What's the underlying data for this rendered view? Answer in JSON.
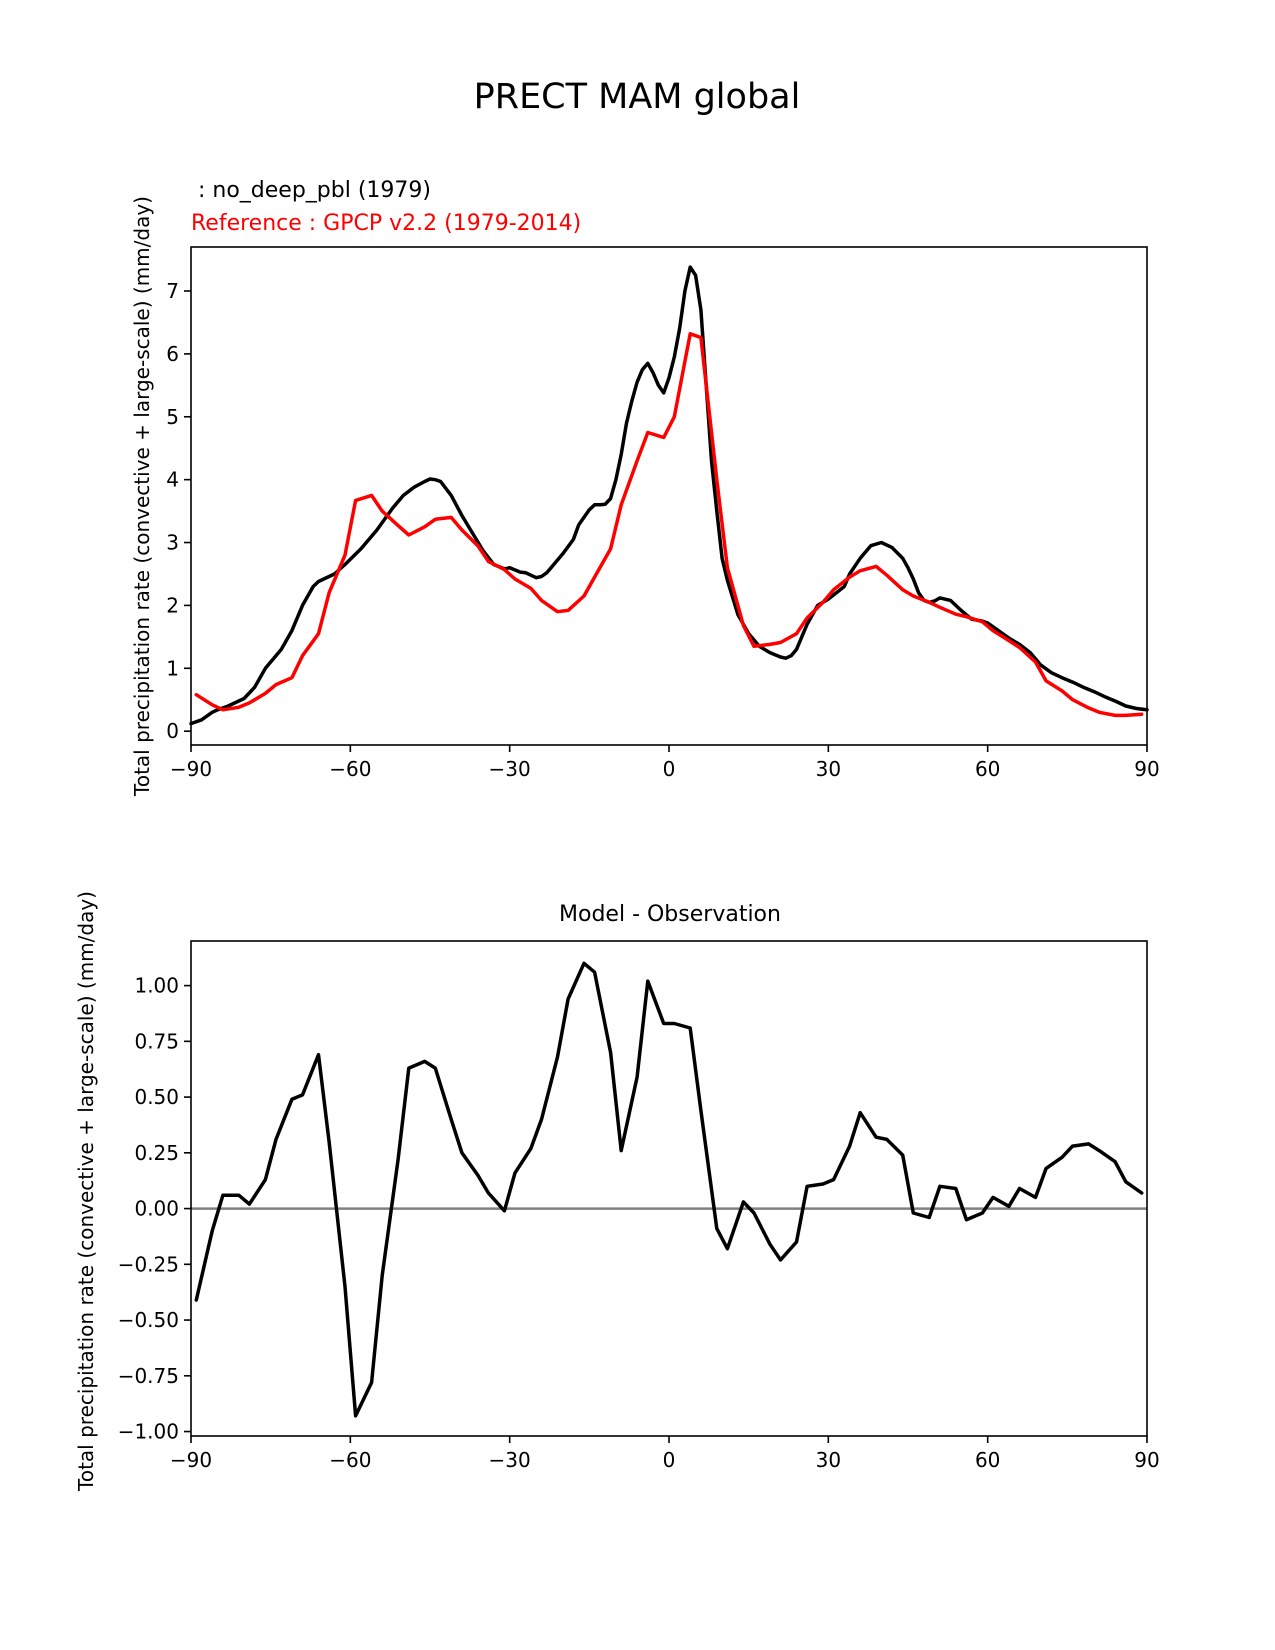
{
  "figure": {
    "title": "PRECT MAM global",
    "test_label": " : no_deep_pbl (1979)",
    "ref_label": "Reference : GPCP v2.2 (1979-2014)",
    "test_color": "#000000",
    "ref_color": "#ff0000",
    "zero_line_color": "#808080"
  },
  "chart_data": [
    {
      "type": "line",
      "title": "",
      "xlabel": "",
      "ylabel": "Total precipitation rate (convective + large-scale) (mm/day)",
      "xlim": [
        -90,
        90
      ],
      "ylim": [
        -0.22,
        7.7
      ],
      "xticks": [
        -90,
        -60,
        -30,
        0,
        30,
        60,
        90
      ],
      "xtick_labels": [
        "−90",
        "−60",
        "−30",
        "0",
        "30",
        "60",
        "90"
      ],
      "yticks": [
        0,
        1,
        2,
        3,
        4,
        5,
        6,
        7
      ],
      "ytick_labels": [
        "0",
        "1",
        "2",
        "3",
        "4",
        "5",
        "6",
        "7"
      ],
      "series": [
        {
          "name": "no_deep_pbl (1979)",
          "color": "#000000",
          "x": [
            -90,
            -88,
            -87,
            -86,
            -85,
            -83,
            -80,
            -78,
            -76,
            -73,
            -71,
            -69,
            -67,
            -66,
            -65,
            -63,
            -61,
            -58,
            -55,
            -52,
            -50,
            -48,
            -46,
            -45,
            -44,
            -43,
            -41,
            -39,
            -37,
            -35,
            -33,
            -31,
            -30,
            -28,
            -27,
            -25,
            -24,
            -23,
            -22,
            -20,
            -18,
            -17,
            -15,
            -14,
            -13,
            -12,
            -11,
            -10,
            -9,
            -8,
            -7,
            -6,
            -5,
            -4,
            -3,
            -2,
            -1,
            0,
            1,
            2,
            3,
            4,
            5,
            6,
            7,
            8,
            9,
            10,
            11,
            13,
            15,
            17,
            19,
            21,
            22,
            23,
            24,
            26,
            28,
            30,
            33,
            34,
            36,
            38,
            40,
            42,
            44,
            45,
            46,
            47,
            48,
            49,
            50,
            51,
            53,
            55,
            57,
            59,
            60,
            62,
            64,
            66,
            68,
            70,
            72,
            74,
            76,
            78,
            80,
            82,
            84,
            86,
            88,
            90
          ],
          "values": [
            0.12,
            0.18,
            0.24,
            0.3,
            0.34,
            0.4,
            0.52,
            0.7,
            1.0,
            1.3,
            1.6,
            2.0,
            2.3,
            2.38,
            2.42,
            2.5,
            2.65,
            2.9,
            3.2,
            3.55,
            3.75,
            3.88,
            3.97,
            4.01,
            4.0,
            3.97,
            3.75,
            3.43,
            3.15,
            2.87,
            2.65,
            2.58,
            2.6,
            2.53,
            2.52,
            2.44,
            2.46,
            2.52,
            2.62,
            2.82,
            3.05,
            3.28,
            3.52,
            3.6,
            3.6,
            3.61,
            3.7,
            4.0,
            4.4,
            4.9,
            5.25,
            5.55,
            5.75,
            5.85,
            5.7,
            5.5,
            5.38,
            5.62,
            5.95,
            6.4,
            7.0,
            7.38,
            7.25,
            6.7,
            5.5,
            4.3,
            3.5,
            2.75,
            2.4,
            1.85,
            1.55,
            1.35,
            1.25,
            1.18,
            1.16,
            1.2,
            1.3,
            1.7,
            2.0,
            2.1,
            2.3,
            2.5,
            2.75,
            2.95,
            3.0,
            2.92,
            2.75,
            2.6,
            2.42,
            2.2,
            2.08,
            2.05,
            2.07,
            2.12,
            2.08,
            1.92,
            1.78,
            1.75,
            1.72,
            1.6,
            1.48,
            1.38,
            1.25,
            1.05,
            0.93,
            0.85,
            0.78,
            0.7,
            0.63,
            0.55,
            0.48,
            0.4,
            0.36,
            0.34
          ]
        },
        {
          "name": "GPCP v2.2 (1979-2014)",
          "color": "#ff0000",
          "x": [
            -89,
            -86,
            -84,
            -81,
            -79,
            -76,
            -74,
            -71,
            -69,
            -66,
            -64,
            -61,
            -59,
            -56,
            -54,
            -51,
            -49,
            -46,
            -44,
            -41,
            -39,
            -36,
            -34,
            -31,
            -29,
            -26,
            -24,
            -21,
            -19,
            -16,
            -14,
            -11,
            -9,
            -6,
            -4,
            -1,
            1,
            4,
            6,
            9,
            11,
            14,
            16,
            19,
            21,
            24,
            26,
            29,
            31,
            34,
            36,
            39,
            41,
            44,
            46,
            49,
            51,
            54,
            56,
            59,
            61,
            64,
            66,
            69,
            71,
            74,
            76,
            79,
            81,
            84,
            86,
            89
          ],
          "values": [
            0.58,
            0.42,
            0.34,
            0.38,
            0.45,
            0.6,
            0.74,
            0.85,
            1.2,
            1.55,
            2.2,
            2.8,
            3.67,
            3.75,
            3.5,
            3.27,
            3.12,
            3.25,
            3.37,
            3.4,
            3.2,
            2.95,
            2.7,
            2.57,
            2.42,
            2.27,
            2.08,
            1.9,
            1.92,
            2.15,
            2.45,
            2.9,
            3.6,
            4.3,
            4.75,
            4.67,
            5.0,
            6.32,
            6.26,
            4.0,
            2.6,
            1.68,
            1.35,
            1.38,
            1.41,
            1.55,
            1.8,
            2.05,
            2.25,
            2.45,
            2.55,
            2.62,
            2.48,
            2.25,
            2.15,
            2.05,
            1.97,
            1.86,
            1.82,
            1.74,
            1.6,
            1.44,
            1.33,
            1.1,
            0.8,
            0.64,
            0.5,
            0.37,
            0.3,
            0.25,
            0.25,
            0.27
          ]
        }
      ]
    },
    {
      "type": "line",
      "title": "Model - Observation",
      "xlabel": "",
      "ylabel": "Total precipitation rate (convective + large-scale) (mm/day)",
      "xlim": [
        -90,
        90
      ],
      "ylim": [
        -1.02,
        1.2
      ],
      "xticks": [
        -90,
        -60,
        -30,
        0,
        30,
        60,
        90
      ],
      "xtick_labels": [
        "−90",
        "−60",
        "−30",
        "0",
        "30",
        "60",
        "90"
      ],
      "yticks": [
        1.0,
        0.75,
        0.5,
        0.25,
        0.0,
        -0.25,
        -0.5,
        -0.75,
        -1.0
      ],
      "ytick_labels": [
        "1.00",
        "0.75",
        "0.50",
        "0.25",
        "0.00",
        "−0.25",
        "−0.50",
        "−0.75",
        "−1.00"
      ],
      "reference_line": 0,
      "series": [
        {
          "name": "Model - Observation",
          "color": "#000000",
          "x": [
            -89,
            -86,
            -84,
            -81,
            -79,
            -76,
            -74,
            -71,
            -69,
            -66,
            -64,
            -61,
            -59,
            -56,
            -54,
            -51,
            -49,
            -46,
            -44,
            -41,
            -39,
            -36,
            -34,
            -31,
            -29,
            -26,
            -24,
            -21,
            -19,
            -16,
            -14,
            -11,
            -9,
            -6,
            -4,
            -1,
            1,
            4,
            6,
            9,
            11,
            14,
            16,
            19,
            21,
            24,
            26,
            29,
            31,
            34,
            36,
            39,
            41,
            44,
            46,
            49,
            51,
            54,
            56,
            59,
            61,
            64,
            66,
            69,
            71,
            74,
            76,
            79,
            81,
            84,
            86,
            89
          ],
          "values": [
            -0.41,
            -0.1,
            0.06,
            0.06,
            0.02,
            0.13,
            0.31,
            0.49,
            0.51,
            0.69,
            0.3,
            -0.35,
            -0.93,
            -0.78,
            -0.3,
            0.22,
            0.63,
            0.66,
            0.63,
            0.4,
            0.25,
            0.15,
            0.07,
            -0.01,
            0.16,
            0.27,
            0.4,
            0.68,
            0.94,
            1.1,
            1.06,
            0.7,
            0.26,
            0.59,
            1.02,
            0.83,
            0.83,
            0.81,
            0.44,
            -0.09,
            -0.18,
            0.03,
            -0.02,
            -0.16,
            -0.23,
            -0.15,
            0.1,
            0.11,
            0.13,
            0.28,
            0.43,
            0.32,
            0.31,
            0.24,
            -0.02,
            -0.04,
            0.1,
            0.09,
            -0.05,
            -0.02,
            0.05,
            0.01,
            0.09,
            0.05,
            0.18,
            0.23,
            0.28,
            0.29,
            0.26,
            0.21,
            0.12,
            0.07
          ]
        }
      ]
    }
  ]
}
